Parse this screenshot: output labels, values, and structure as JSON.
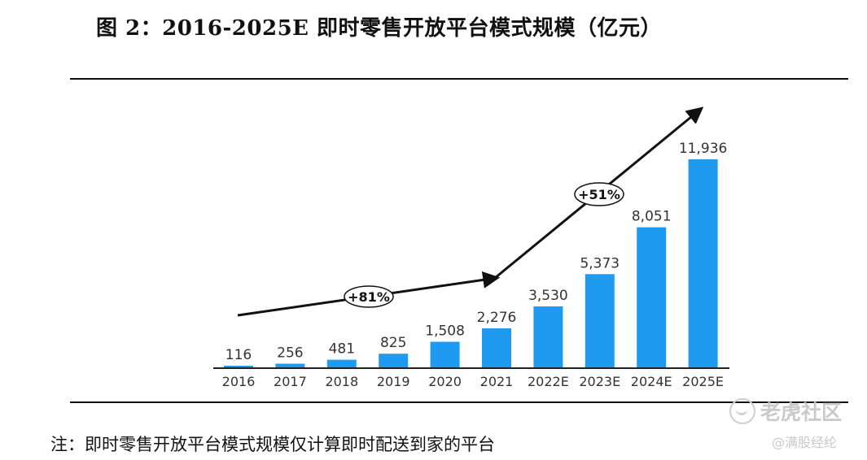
{
  "title": "图 2：2016-2025E 即时零售开放平台模式规模（亿元）",
  "note": "注：即时零售开放平台模式规模仅计算即时配送到家的平台",
  "watermark": {
    "brand": "老虎社区",
    "author": "@满股经纶",
    "logo_icon": "tiger-community-logo"
  },
  "colors": {
    "bar": "#1E9BF0",
    "text": "#333333",
    "axis": "#222222",
    "arrow": "#111111"
  },
  "chart_data": {
    "type": "bar",
    "title": "图 2：2016-2025E 即时零售开放平台模式规模（亿元）",
    "categories": [
      "2016",
      "2017",
      "2018",
      "2019",
      "2020",
      "2021",
      "2022E",
      "2023E",
      "2024E",
      "2025E"
    ],
    "values": [
      116,
      256,
      481,
      825,
      1508,
      2276,
      3530,
      5373,
      8051,
      11936
    ],
    "value_labels": [
      "116",
      "256",
      "481",
      "825",
      "1,508",
      "2,276",
      "3,530",
      "5,373",
      "8,051",
      "11,936"
    ],
    "ylim": [
      0,
      12000
    ],
    "grid": false,
    "legend": "none",
    "annotations": [
      {
        "text": "+81%",
        "from": "2016",
        "to": "2021"
      },
      {
        "text": "+51%",
        "from": "2021",
        "to": "2025E"
      }
    ]
  }
}
